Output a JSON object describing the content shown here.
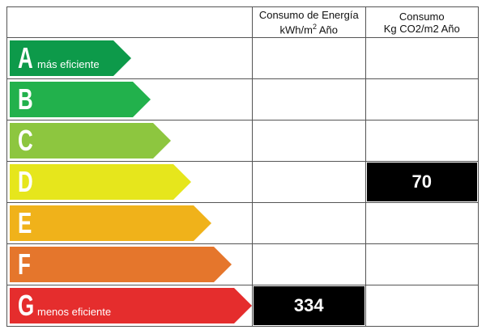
{
  "header": {
    "energy_line1": "Consumo de Energía",
    "energy_line2": "kWh/m",
    "energy_sup": "2",
    "energy_line2_tail": " Año",
    "co2_line1": "Consumo",
    "co2_line2": "Kg CO2/m2 Año"
  },
  "ratings": [
    {
      "letter": "A",
      "desc": "más eficiente",
      "color": "#0d9a4a"
    },
    {
      "letter": "B",
      "desc": "",
      "color": "#22b14c"
    },
    {
      "letter": "C",
      "desc": "",
      "color": "#8dc63f"
    },
    {
      "letter": "D",
      "desc": "",
      "color": "#e6e61c"
    },
    {
      "letter": "E",
      "desc": "",
      "color": "#f0b21a"
    },
    {
      "letter": "F",
      "desc": "",
      "color": "#e5762c"
    },
    {
      "letter": "G",
      "desc": "menos eficiente",
      "color": "#e52d2d"
    }
  ],
  "energy_value": {
    "rating": "G",
    "value": "334"
  },
  "co2_value": {
    "rating": "D",
    "value": "70"
  }
}
